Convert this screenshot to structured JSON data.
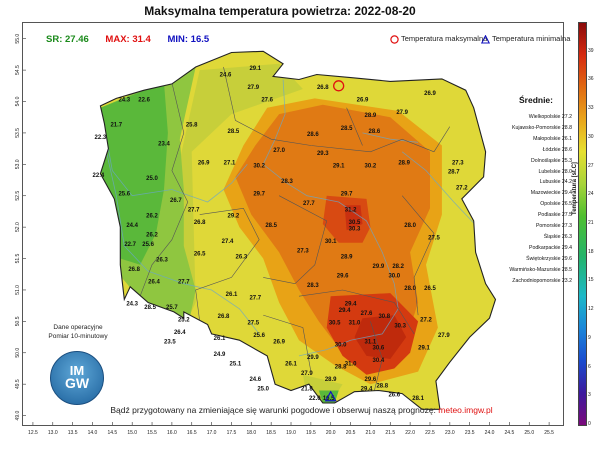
{
  "title": "Maksymalna temperatura powietrza:  2022-08-20",
  "stats": {
    "sr": "SR: 27.46",
    "max": "MAX: 31.4",
    "min": "MIN: 16.5"
  },
  "legend": {
    "max_label": "Temperatura maksymalna",
    "min_label": "Temperatura minimalna"
  },
  "means": {
    "title": "Średnie:",
    "rows": [
      "Wielkopolskie 27.2",
      "Kujawsko-Pomorskie 28.8",
      "Małopolskie 26.1",
      "Łódzkie 28.6",
      "Dolnośląskie 25.3",
      "Lubelskie 28.0",
      "Lubuskie 24.2",
      "Mazowieckie 29.4",
      "Opolskie 26.5",
      "Podlaskie 27.5",
      "Pomorskie 27.3",
      "Śląskie 26.3",
      "Podkarpackie 29.4",
      "Świętokrzyskie 29.6",
      "Warmińsko-Mazurskie 28.5",
      "Zachodniopomorskie 23.2"
    ]
  },
  "notes": {
    "line1": "Dane operacyjne",
    "line2": "Pomiar 10-minutowy"
  },
  "logo": {
    "line1": "IM",
    "line2": "GW"
  },
  "footer": {
    "text": "Bądź przygotowany na zmieniające się warunki pogodowe i obserwuj naszą prognozę: ",
    "link": "meteo.imgw.pl"
  },
  "colorbar": {
    "label": "Temperatura [st.C]",
    "ticks": [
      "0",
      "3",
      "6",
      "9",
      "12",
      "15",
      "18",
      "21",
      "24",
      "27",
      "30",
      "33",
      "36",
      "39"
    ],
    "range": [
      0,
      42
    ]
  },
  "axes": {
    "lon_ticks": [
      "12.5",
      "13.0",
      "13.5",
      "14.0",
      "14.5",
      "15.0",
      "15.5",
      "16.0",
      "16.5",
      "17.0",
      "17.5",
      "18.0",
      "18.5",
      "19.0",
      "19.5",
      "20.0",
      "20.5",
      "21.0",
      "21.5",
      "22.0",
      "22.5",
      "23.0",
      "23.5",
      "24.0",
      "24.5",
      "25.0",
      "25.5"
    ],
    "lat_ticks": [
      "49.0",
      "49.5",
      "50.0",
      "50.5",
      "51.0",
      "51.5",
      "52.0",
      "52.5",
      "53.0",
      "53.5",
      "54.0",
      "54.5",
      "55.0"
    ]
  },
  "markers": {
    "max": {
      "lon": 20.2,
      "lat": 54.25
    },
    "min": {
      "lon": 20.0,
      "lat": 49.3
    }
  },
  "stations": [
    {
      "v": "29.1",
      "lon": 18.1,
      "lat": 54.5
    },
    {
      "v": "24.6",
      "lon": 17.35,
      "lat": 54.4
    },
    {
      "v": "27.9",
      "lon": 18.05,
      "lat": 54.2
    },
    {
      "v": "26.8",
      "lon": 19.8,
      "lat": 54.2
    },
    {
      "v": "24.3",
      "lon": 14.8,
      "lat": 54.0
    },
    {
      "v": "22.6",
      "lon": 15.3,
      "lat": 54.0
    },
    {
      "v": "27.6",
      "lon": 18.4,
      "lat": 54.0
    },
    {
      "v": "26.9",
      "lon": 20.8,
      "lat": 54.0
    },
    {
      "v": "26.9",
      "lon": 22.5,
      "lat": 54.1
    },
    {
      "v": "27.9",
      "lon": 21.8,
      "lat": 53.8
    },
    {
      "v": "28.9",
      "lon": 21.0,
      "lat": 53.75
    },
    {
      "v": "21.7",
      "lon": 14.6,
      "lat": 53.6
    },
    {
      "v": "25.8",
      "lon": 16.5,
      "lat": 53.6
    },
    {
      "v": "28.5",
      "lon": 20.4,
      "lat": 53.55
    },
    {
      "v": "28.6",
      "lon": 21.1,
      "lat": 53.5
    },
    {
      "v": "22.3",
      "lon": 14.2,
      "lat": 53.4
    },
    {
      "v": "23.4",
      "lon": 15.8,
      "lat": 53.3
    },
    {
      "v": "28.5",
      "lon": 17.55,
      "lat": 53.5
    },
    {
      "v": "28.6",
      "lon": 19.55,
      "lat": 53.45
    },
    {
      "v": "27.0",
      "lon": 18.7,
      "lat": 53.2
    },
    {
      "v": "29.3",
      "lon": 19.8,
      "lat": 53.15
    },
    {
      "v": "28.9",
      "lon": 21.85,
      "lat": 53.0
    },
    {
      "v": "27.3",
      "lon": 23.2,
      "lat": 53.0
    },
    {
      "v": "26.9",
      "lon": 16.8,
      "lat": 53.0
    },
    {
      "v": "27.1",
      "lon": 17.45,
      "lat": 53.0
    },
    {
      "v": "30.2",
      "lon": 18.2,
      "lat": 52.95
    },
    {
      "v": "29.1",
      "lon": 20.2,
      "lat": 52.95
    },
    {
      "v": "30.2",
      "lon": 21.0,
      "lat": 52.95
    },
    {
      "v": "28.7",
      "lon": 23.1,
      "lat": 52.85
    },
    {
      "v": "22.4",
      "lon": 14.15,
      "lat": 52.8
    },
    {
      "v": "25.0",
      "lon": 15.5,
      "lat": 52.75
    },
    {
      "v": "28.3",
      "lon": 18.9,
      "lat": 52.7
    },
    {
      "v": "27.2",
      "lon": 23.3,
      "lat": 52.6
    },
    {
      "v": "25.6",
      "lon": 14.8,
      "lat": 52.5
    },
    {
      "v": "29.7",
      "lon": 18.2,
      "lat": 52.5
    },
    {
      "v": "29.7",
      "lon": 20.4,
      "lat": 52.5
    },
    {
      "v": "26.7",
      "lon": 16.1,
      "lat": 52.4
    },
    {
      "v": "27.7",
      "lon": 19.45,
      "lat": 52.35
    },
    {
      "v": "27.7",
      "lon": 16.55,
      "lat": 52.25
    },
    {
      "v": "31.2",
      "lon": 20.5,
      "lat": 52.25
    },
    {
      "v": "26.2",
      "lon": 15.5,
      "lat": 52.15
    },
    {
      "v": "29.2",
      "lon": 17.55,
      "lat": 52.15
    },
    {
      "v": "26.8",
      "lon": 16.7,
      "lat": 52.05
    },
    {
      "v": "30.5",
      "lon": 20.6,
      "lat": 52.05
    },
    {
      "v": "28.0",
      "lon": 22.0,
      "lat": 52.0
    },
    {
      "v": "24.4",
      "lon": 15.0,
      "lat": 52.0
    },
    {
      "v": "28.5",
      "lon": 18.5,
      "lat": 52.0
    },
    {
      "v": "30.3",
      "lon": 20.6,
      "lat": 51.95
    },
    {
      "v": "26.2",
      "lon": 15.5,
      "lat": 51.85
    },
    {
      "v": "30.1",
      "lon": 20.0,
      "lat": 51.75
    },
    {
      "v": "27.5",
      "lon": 22.6,
      "lat": 51.8
    },
    {
      "v": "27.4",
      "lon": 17.4,
      "lat": 51.75
    },
    {
      "v": "22.7",
      "lon": 14.95,
      "lat": 51.7
    },
    {
      "v": "25.6",
      "lon": 15.4,
      "lat": 51.7
    },
    {
      "v": "27.3",
      "lon": 19.3,
      "lat": 51.6
    },
    {
      "v": "26.5",
      "lon": 16.7,
      "lat": 51.55
    },
    {
      "v": "26.3",
      "lon": 17.75,
      "lat": 51.5
    },
    {
      "v": "28.9",
      "lon": 20.4,
      "lat": 51.5
    },
    {
      "v": "26.3",
      "lon": 15.75,
      "lat": 51.45
    },
    {
      "v": "29.9",
      "lon": 21.2,
      "lat": 51.35
    },
    {
      "v": "28.2",
      "lon": 21.7,
      "lat": 51.35
    },
    {
      "v": "26.8",
      "lon": 15.05,
      "lat": 51.3
    },
    {
      "v": "29.6",
      "lon": 20.3,
      "lat": 51.2
    },
    {
      "v": "30.0",
      "lon": 21.6,
      "lat": 51.2
    },
    {
      "v": "26.4",
      "lon": 15.55,
      "lat": 51.1
    },
    {
      "v": "27.7",
      "lon": 16.3,
      "lat": 51.1
    },
    {
      "v": "28.0",
      "lon": 22.0,
      "lat": 51.0
    },
    {
      "v": "26.5",
      "lon": 22.5,
      "lat": 51.0
    },
    {
      "v": "28.3",
      "lon": 19.55,
      "lat": 51.05
    },
    {
      "v": "26.1",
      "lon": 17.5,
      "lat": 50.9
    },
    {
      "v": "27.7",
      "lon": 18.1,
      "lat": 50.85
    },
    {
      "v": "29.4",
      "lon": 20.5,
      "lat": 50.75
    },
    {
      "v": "24.3",
      "lon": 15.0,
      "lat": 50.75
    },
    {
      "v": "28.5",
      "lon": 15.45,
      "lat": 50.7
    },
    {
      "v": "25.7",
      "lon": 16.0,
      "lat": 50.7
    },
    {
      "v": "29.4",
      "lon": 20.35,
      "lat": 50.65
    },
    {
      "v": "27.6",
      "lon": 20.9,
      "lat": 50.6
    },
    {
      "v": "26.8",
      "lon": 17.3,
      "lat": 50.55
    },
    {
      "v": "30.8",
      "lon": 21.35,
      "lat": 50.55
    },
    {
      "v": "25.2",
      "lon": 16.3,
      "lat": 50.5
    },
    {
      "v": "27.2",
      "lon": 22.4,
      "lat": 50.5
    },
    {
      "v": "27.5",
      "lon": 18.05,
      "lat": 50.45
    },
    {
      "v": "30.5",
      "lon": 20.1,
      "lat": 50.45
    },
    {
      "v": "31.0",
      "lon": 20.6,
      "lat": 50.45
    },
    {
      "v": "30.3",
      "lon": 21.75,
      "lat": 50.4
    },
    {
      "v": "26.4",
      "lon": 16.2,
      "lat": 50.3
    },
    {
      "v": "25.6",
      "lon": 18.2,
      "lat": 50.25
    },
    {
      "v": "27.9",
      "lon": 22.85,
      "lat": 50.25
    },
    {
      "v": "23.5",
      "lon": 15.95,
      "lat": 50.15
    },
    {
      "v": "26.1",
      "lon": 17.2,
      "lat": 50.2
    },
    {
      "v": "26.9",
      "lon": 18.7,
      "lat": 50.15
    },
    {
      "v": "31.1",
      "lon": 21.0,
      "lat": 50.15
    },
    {
      "v": "30.0",
      "lon": 20.25,
      "lat": 50.1
    },
    {
      "v": "30.6",
      "lon": 21.2,
      "lat": 50.05
    },
    {
      "v": "29.1",
      "lon": 22.35,
      "lat": 50.05
    },
    {
      "v": "24.9",
      "lon": 17.2,
      "lat": 49.95
    },
    {
      "v": "29.9",
      "lon": 19.55,
      "lat": 49.9
    },
    {
      "v": "30.4",
      "lon": 21.2,
      "lat": 49.85
    },
    {
      "v": "31.0",
      "lon": 20.5,
      "lat": 49.8
    },
    {
      "v": "25.1",
      "lon": 17.6,
      "lat": 49.8
    },
    {
      "v": "26.1",
      "lon": 19.0,
      "lat": 49.8
    },
    {
      "v": "28.8",
      "lon": 20.25,
      "lat": 49.75
    },
    {
      "v": "27.9",
      "lon": 19.4,
      "lat": 49.65
    },
    {
      "v": "28.9",
      "lon": 20.0,
      "lat": 49.55
    },
    {
      "v": "29.6",
      "lon": 21.0,
      "lat": 49.55
    },
    {
      "v": "25.0",
      "lon": 18.3,
      "lat": 49.4
    },
    {
      "v": "28.8",
      "lon": 21.3,
      "lat": 49.45
    },
    {
      "v": "24.6",
      "lon": 18.1,
      "lat": 49.55
    },
    {
      "v": "29.4",
      "lon": 20.9,
      "lat": 49.4
    },
    {
      "v": "26.6",
      "lon": 21.6,
      "lat": 49.3
    },
    {
      "v": "28.1",
      "lon": 22.2,
      "lat": 49.25
    },
    {
      "v": "22.0",
      "lon": 19.6,
      "lat": 49.25
    },
    {
      "v": "16.5",
      "lon": 19.95,
      "lat": 49.25
    },
    {
      "v": "21.8",
      "lon": 19.4,
      "lat": 49.4
    }
  ]
}
